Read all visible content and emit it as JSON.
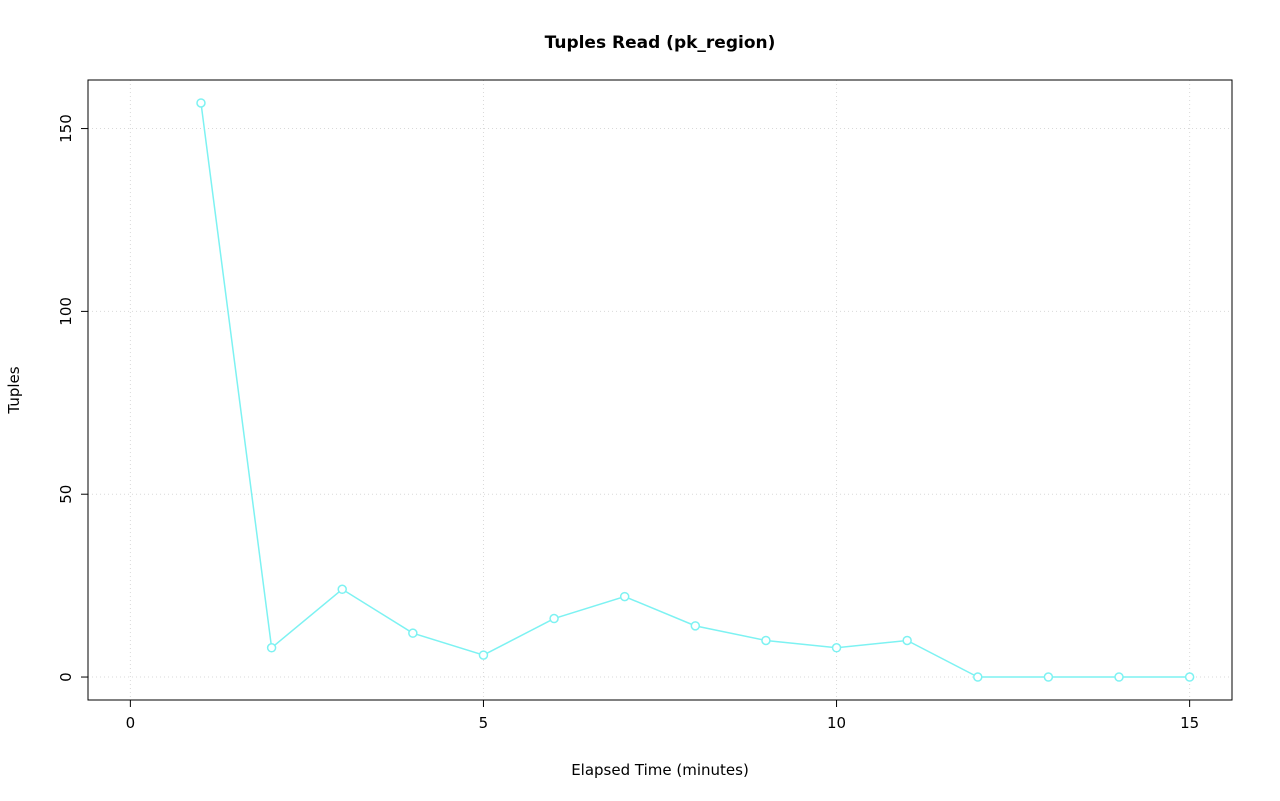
{
  "chart": {
    "title": "Tuples Read (pk_region)",
    "xlabel": "Elapsed Time (minutes)",
    "ylabel": "Tuples"
  },
  "chart_data": {
    "type": "line",
    "title": "Tuples Read (pk_region)",
    "xlabel": "Elapsed Time (minutes)",
    "ylabel": "Tuples",
    "x": [
      1,
      2,
      3,
      4,
      5,
      6,
      7,
      8,
      9,
      10,
      11,
      12,
      13,
      14,
      15
    ],
    "values": [
      157,
      8,
      24,
      12,
      6,
      16,
      22,
      14,
      10,
      8,
      10,
      0,
      0,
      0,
      0
    ],
    "xlim": [
      0,
      15
    ],
    "ylim": [
      0,
      157
    ],
    "xticks": [
      0,
      5,
      10,
      15
    ],
    "yticks": [
      0,
      50,
      100,
      150
    ],
    "grid": true,
    "grid_color": "#d9d9d9",
    "line_color": "#7DF2F2",
    "marker": "open-circle",
    "axis_color": "#000000",
    "legend": "none"
  }
}
